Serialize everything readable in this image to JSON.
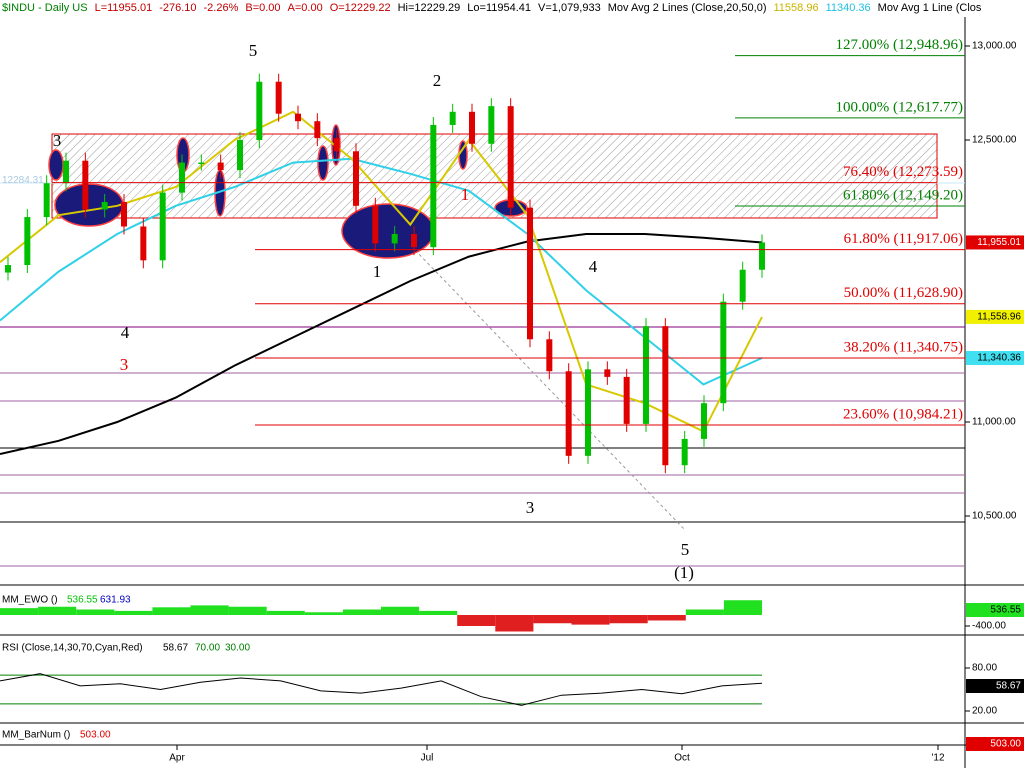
{
  "chart_data": {
    "type": "stock",
    "header": [
      {
        "text": "$INDU - Daily  US",
        "color": "#008000"
      },
      {
        "text": "L=11955.01",
        "color": "#c00000"
      },
      {
        "text": "-276.10",
        "color": "#c00000"
      },
      {
        "text": "-2.26%",
        "color": "#c00000"
      },
      {
        "text": "B=0.00",
        "color": "#c00000"
      },
      {
        "text": "A=0.00",
        "color": "#c00000"
      },
      {
        "text": "O=12229.22",
        "color": "#c00000"
      },
      {
        "text": "Hi=12229.29",
        "color": "#000000"
      },
      {
        "text": "Lo=11954.41",
        "color": "#000000"
      },
      {
        "text": "V=1,079,933",
        "color": "#000000"
      },
      {
        "text": "Mov Avg 2 Lines (Close,20,50,0)",
        "color": "#000000"
      },
      {
        "text": "11558.96",
        "color": "#c8b400"
      },
      {
        "text": "11340.36",
        "color": "#20c0e0"
      },
      {
        "text": "Mov Avg 1 Line (Clos",
        "color": "#000000"
      }
    ],
    "ylim": [
      10200,
      13050
    ],
    "yticks": [
      {
        "value": 13000,
        "label": "13,000.00"
      },
      {
        "value": 12500,
        "label": "12,500.00"
      },
      {
        "value": 11000,
        "label": "11,000.00"
      },
      {
        "value": 10500,
        "label": "10,500.00"
      }
    ],
    "x_labels": [
      "Apr",
      "Jul",
      "Oct",
      "'12"
    ],
    "price": {
      "name": "$INDU",
      "up_color": "#00c000",
      "down_color": "#e00000",
      "values": [
        11835,
        12090,
        12270,
        12390,
        12130,
        12170,
        12040,
        11860,
        12220,
        12380,
        12380,
        12340,
        12500,
        12810,
        12640,
        12600,
        12510,
        12440,
        12150,
        11950,
        12000,
        11930,
        12580,
        12650,
        12480,
        12680,
        12140,
        11440,
        11270,
        10820,
        11280,
        11240,
        10990,
        11510,
        10770,
        10910,
        11100,
        11640,
        11810,
        11955.01
      ]
    },
    "series": [
      {
        "name": "Mov Avg 200",
        "color": "#000000",
        "values": [
          10830,
          10900,
          11000,
          11130,
          11300,
          11450,
          11600,
          11750,
          11880,
          11960,
          12000,
          12000,
          11980,
          11955
        ]
      },
      {
        "name": "Mov Avg 50",
        "color": "#30d0e8",
        "values": [
          11540,
          11800,
          12000,
          12150,
          12250,
          12380,
          12400,
          12320,
          12230,
          12000,
          11700,
          11450,
          11200,
          11340.36
        ]
      },
      {
        "name": "Mov Avg 20",
        "color": "#d8c800",
        "values": [
          11850,
          12100,
          12150,
          12250,
          12500,
          12650,
          12400,
          12050,
          12500,
          12100,
          11200,
          11100,
          10950,
          11558.96
        ]
      }
    ],
    "price_labels": [
      {
        "label": "12284.31",
        "value": 12284.31,
        "color": "#c8e8f8"
      },
      {
        "label": "11,955.01",
        "value": 11955.01,
        "color": "#e00000"
      },
      {
        "label": "11,558.96",
        "value": 11558.96,
        "color": "#f0f000"
      },
      {
        "label": "11,340.36",
        "value": 11340.36,
        "color": "#40e0f0"
      }
    ],
    "fib": [
      {
        "label": "127.00% (12,948.96)",
        "value": 12948.96,
        "color": "#008000"
      },
      {
        "label": "100.00% (12,617.77)",
        "value": 12617.77,
        "color": "#008000"
      },
      {
        "label": "76.40% (12,273.59)",
        "value": 12273.59,
        "color": "#e00000"
      },
      {
        "label": "61.80% (12,149.20)",
        "value": 12149.2,
        "color": "#008000"
      },
      {
        "label": "61.80% (11,917.06)",
        "value": 11917.06,
        "color": "#e00000"
      },
      {
        "label": "50.00% (11,628.90)",
        "value": 11628.9,
        "color": "#e00000"
      },
      {
        "label": "38.20% (11,340.75)",
        "value": 11340.75,
        "color": "#e00000"
      },
      {
        "label": "23.60% (10,984.21)",
        "value": 10984.21,
        "color": "#e00000"
      }
    ],
    "waves": [
      {
        "text": "5",
        "color": "#000000"
      },
      {
        "text": "2",
        "color": "#000000"
      },
      {
        "text": "3",
        "color": "#000000"
      },
      {
        "text": "1",
        "color": "#e00000"
      },
      {
        "text": "1",
        "color": "#000000"
      },
      {
        "text": "4",
        "color": "#000000"
      },
      {
        "text": "3",
        "color": "#e00000"
      },
      {
        "text": "4",
        "color": "#000000"
      },
      {
        "text": "3",
        "color": "#000000"
      },
      {
        "text": "5",
        "color": "#000000"
      },
      {
        "text": "(1)",
        "color": "#000000"
      }
    ],
    "ewo": {
      "title": "MM_EWO ()",
      "last": "536.55",
      "other": "631.93",
      "box": "536.55",
      "axis_label": {
        "value": -400,
        "label": "-400.00"
      },
      "values": [
        250,
        300,
        200,
        150,
        280,
        350,
        300,
        150,
        100,
        200,
        300,
        150,
        -400,
        -600,
        -300,
        -350,
        -300,
        -200,
        200,
        536.55
      ]
    },
    "rsi": {
      "title": "RSI (Close,14,30,70,Cyan,Red)",
      "last": "58.67",
      "upper": {
        "value": 70,
        "label": "70.00"
      },
      "lower": {
        "value": 30,
        "label": "30.00"
      },
      "box": "58.67",
      "ticks": [
        {
          "value": 80,
          "label": "80.00"
        },
        {
          "value": 20,
          "label": "20.00"
        }
      ],
      "values": [
        62,
        72,
        55,
        58,
        50,
        60,
        66,
        62,
        48,
        45,
        52,
        62,
        40,
        28,
        42,
        45,
        50,
        44,
        55,
        58.67
      ]
    },
    "barnum": {
      "title": "MM_BarNum ()",
      "last": "503.00",
      "box": "503.00"
    }
  }
}
